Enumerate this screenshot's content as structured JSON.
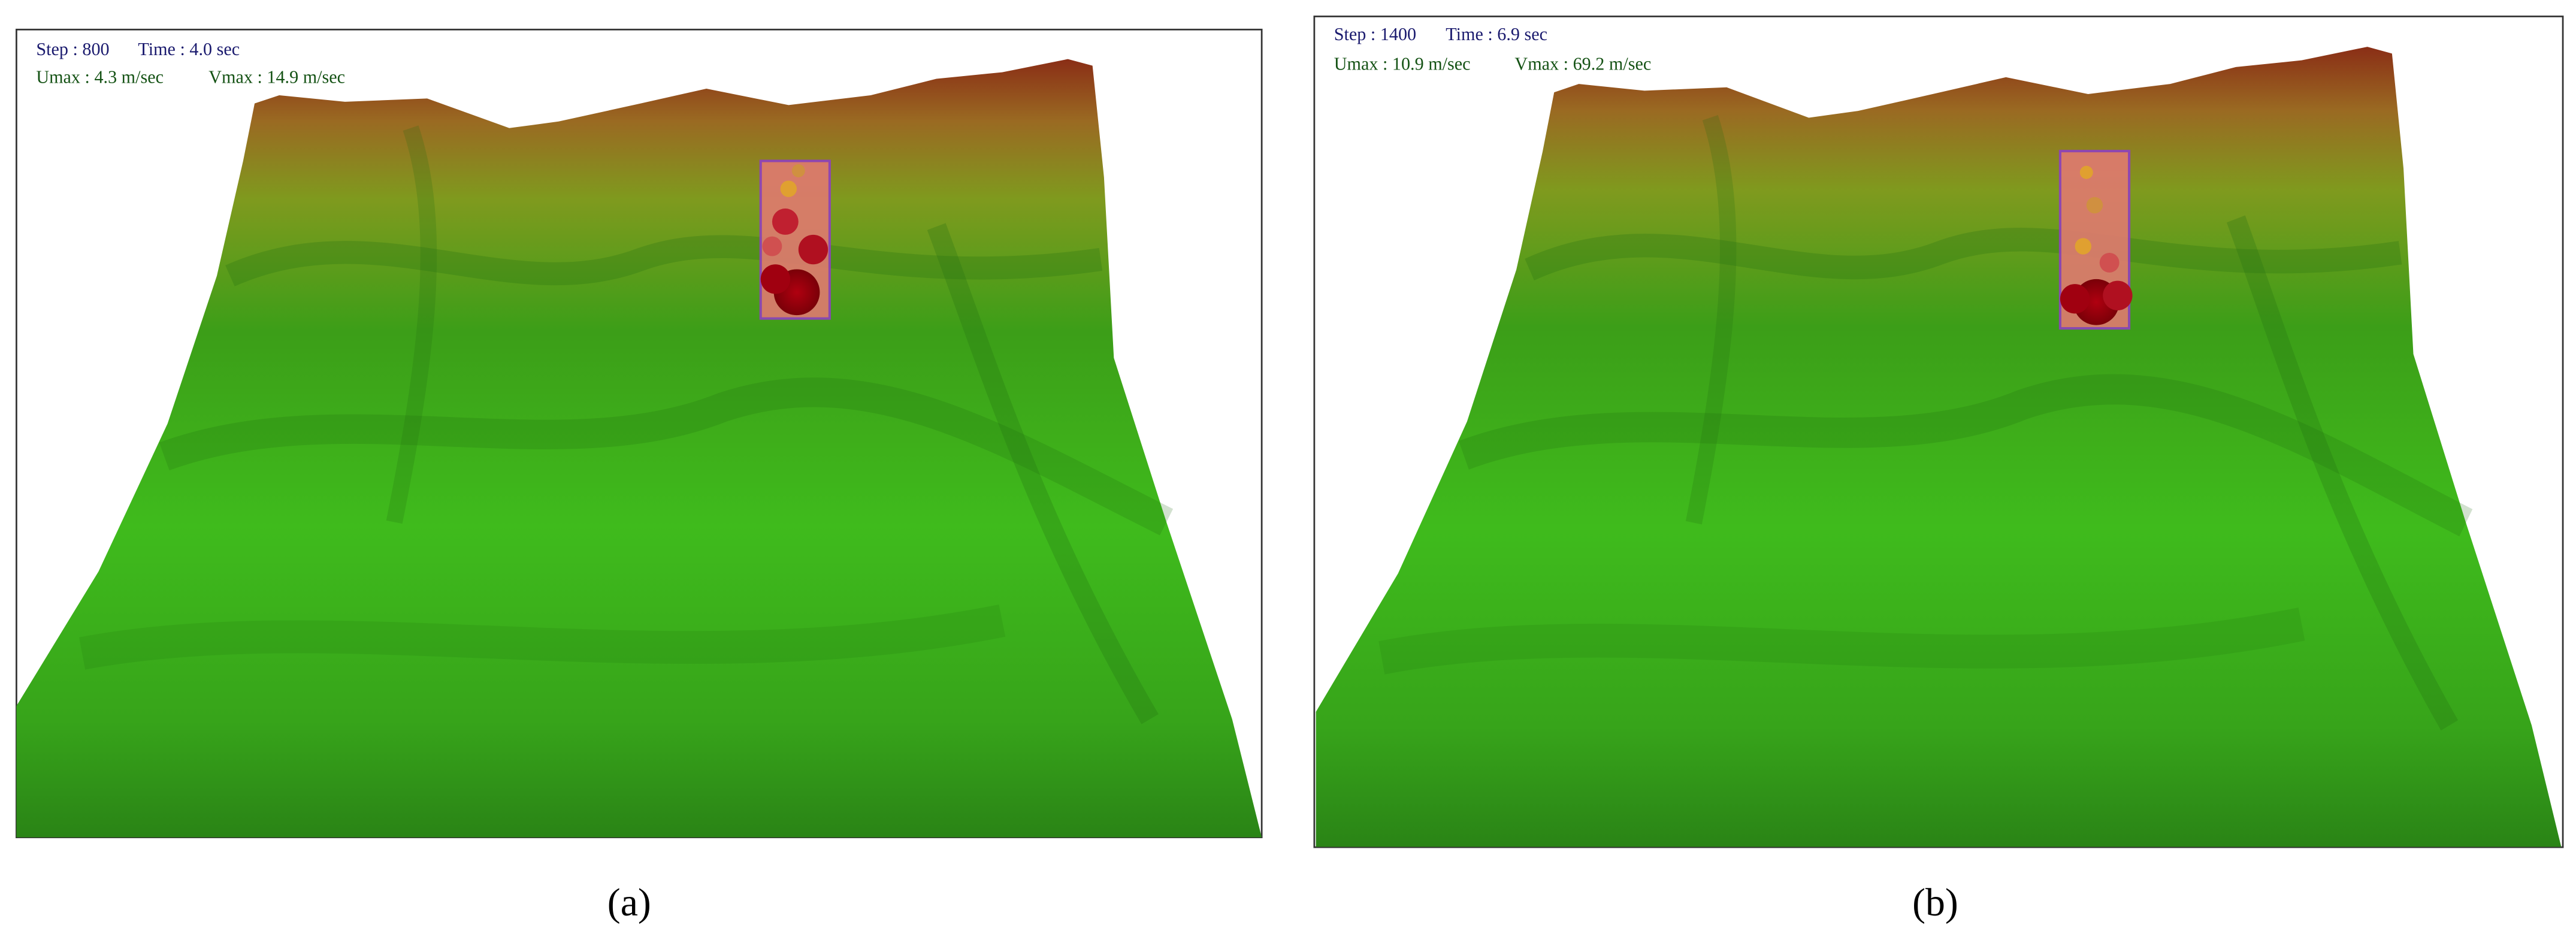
{
  "panels": [
    {
      "label": "(a)",
      "step": "Step : 800",
      "time": "Time : 4.0 sec",
      "umax": "Umax : 4.3 m/sec",
      "vmax": "Vmax : 14.9 m/sec"
    },
    {
      "label": "(b)",
      "step": "Step : 1400",
      "time": "Time : 6.9 sec",
      "umax": "Umax : 10.9 m/sec",
      "vmax": "Vmax : 69.2 m/sec"
    }
  ]
}
